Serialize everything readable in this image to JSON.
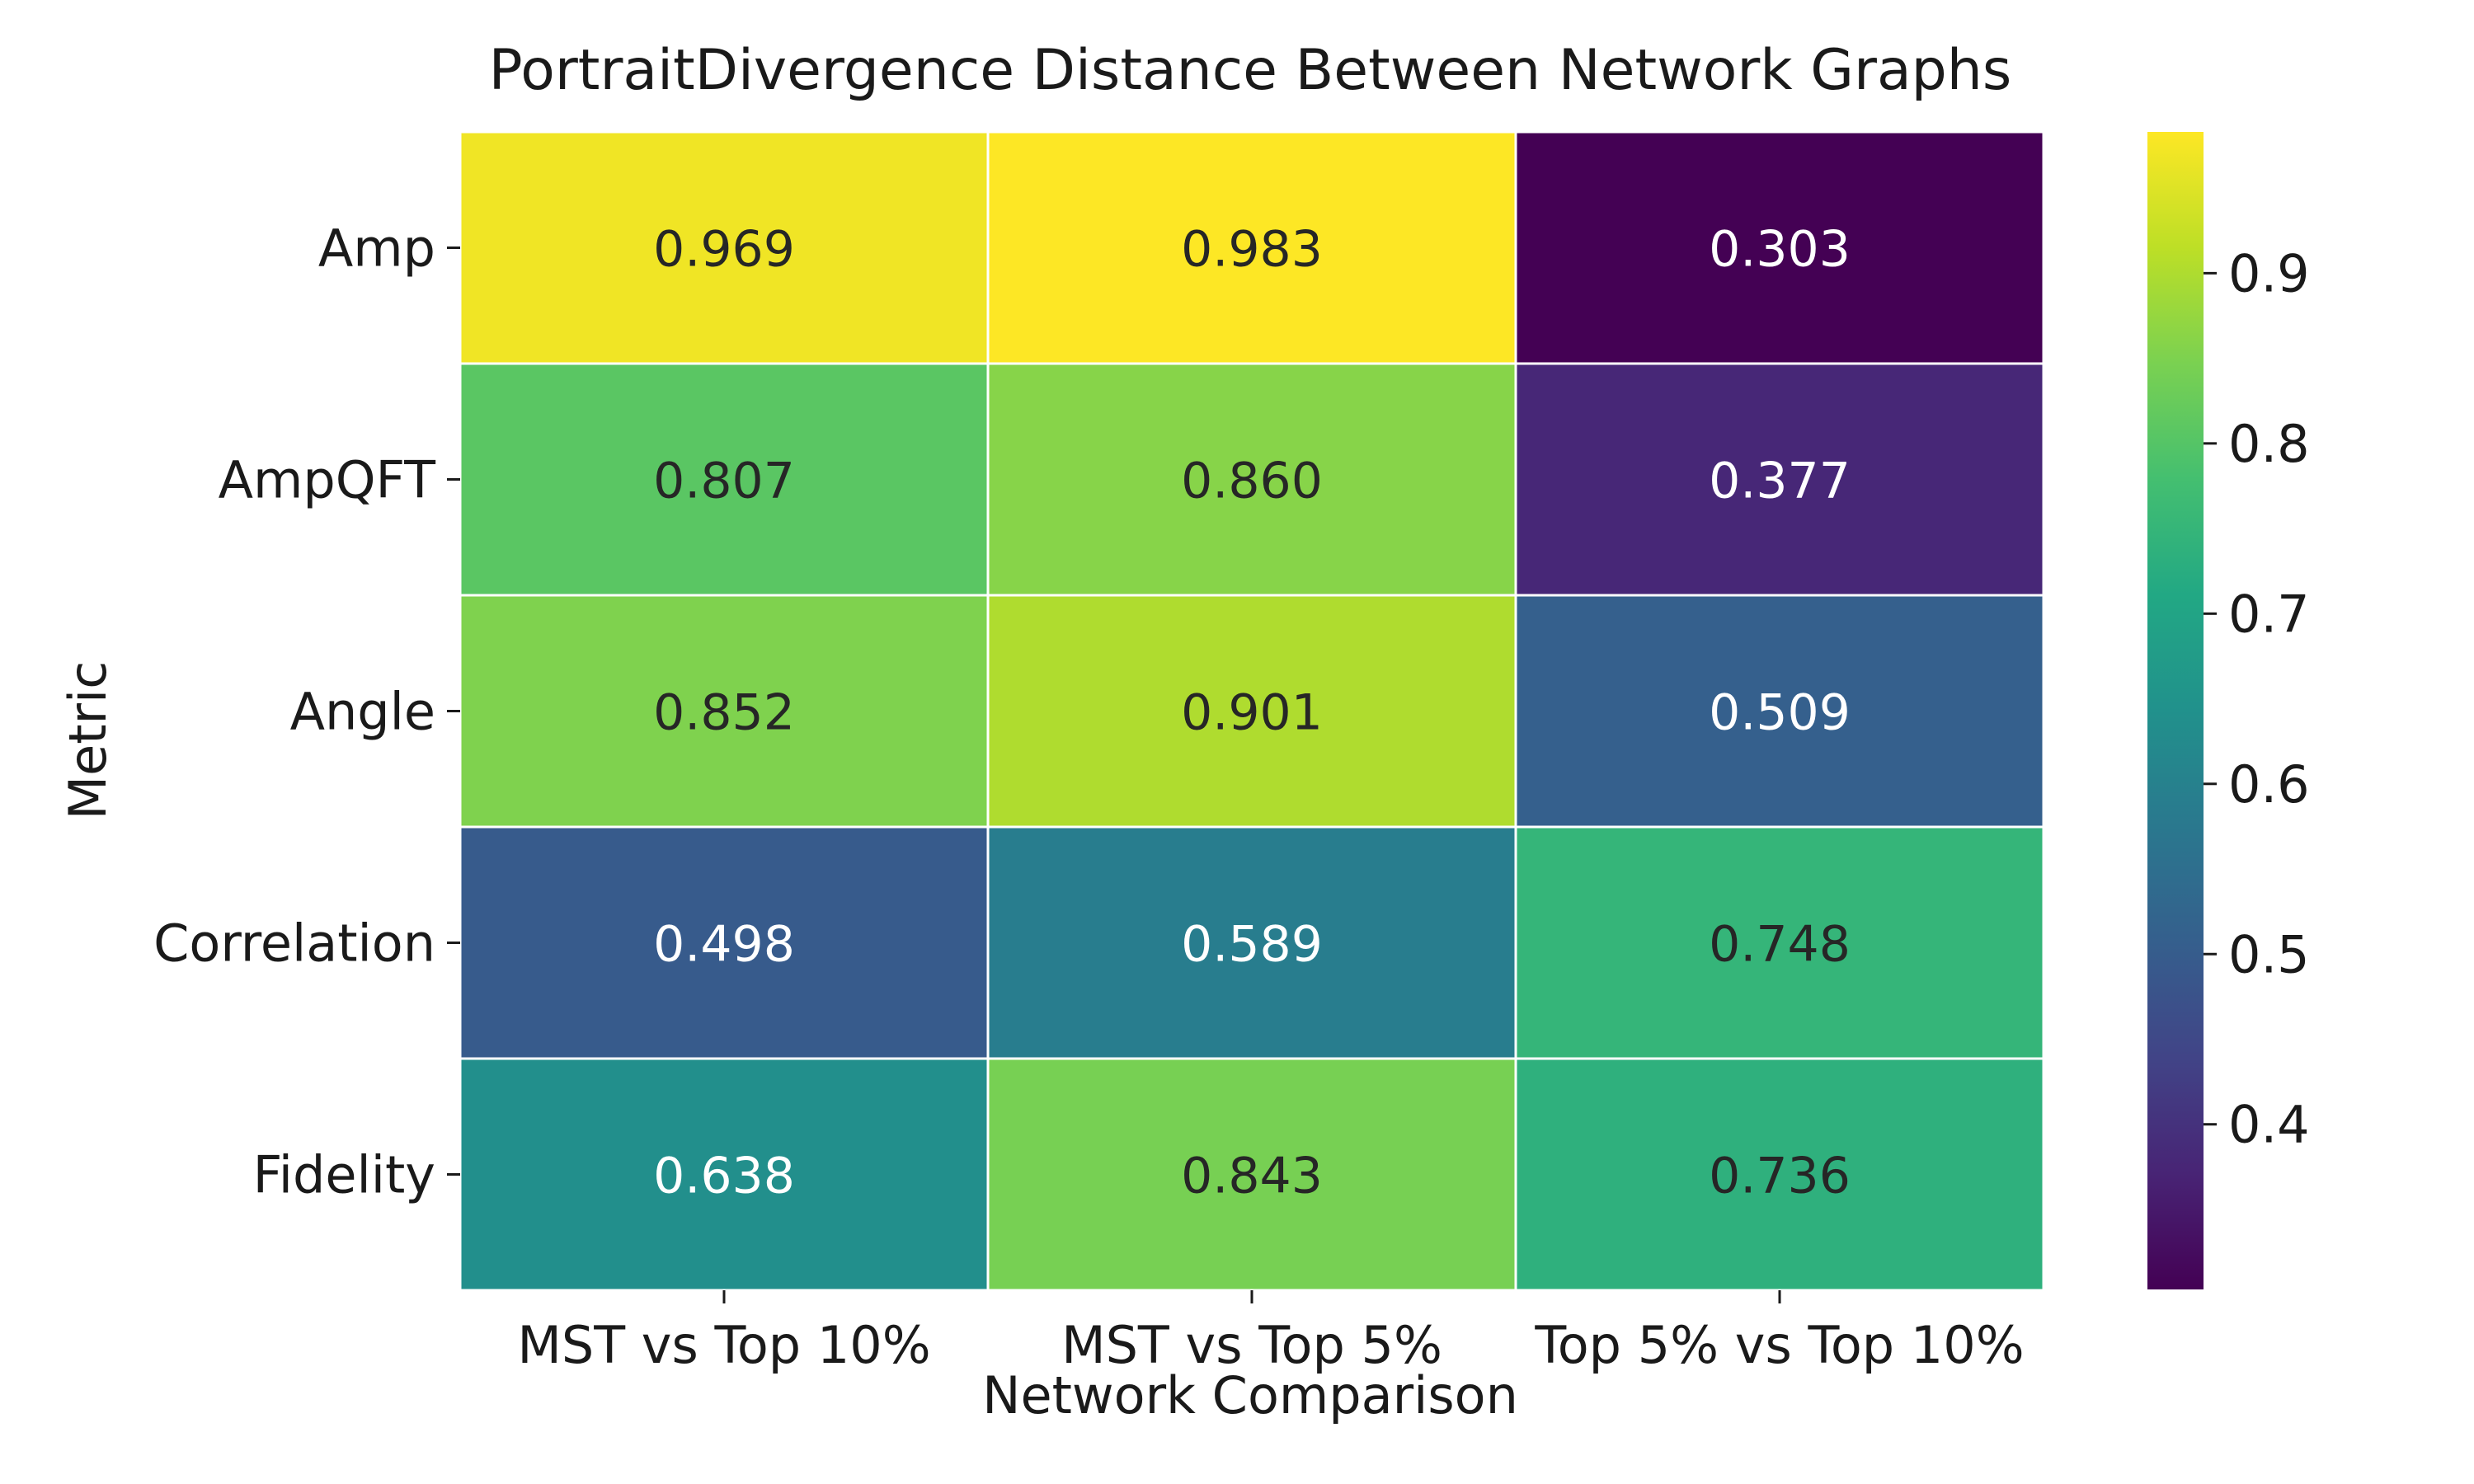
{
  "chart_data": {
    "type": "heatmap",
    "title": "PortraitDivergence Distance Between Network Graphs",
    "xlabel": "Network Comparison",
    "ylabel": "Metric",
    "x_categories": [
      "MST vs Top 10%",
      "MST vs Top 5%",
      "Top 5% vs Top 10%"
    ],
    "y_categories": [
      "Amp",
      "AmpQFT",
      "Angle",
      "Correlation",
      "Fidelity"
    ],
    "values": [
      [
        0.969,
        0.983,
        0.303
      ],
      [
        0.807,
        0.86,
        0.377
      ],
      [
        0.852,
        0.901,
        0.509
      ],
      [
        0.498,
        0.589,
        0.748
      ],
      [
        0.638,
        0.843,
        0.736
      ]
    ],
    "value_labels": [
      [
        "0.969",
        "0.983",
        "0.303"
      ],
      [
        "0.807",
        "0.860",
        "0.377"
      ],
      [
        "0.852",
        "0.901",
        "0.509"
      ],
      [
        "0.498",
        "0.589",
        "0.748"
      ],
      [
        "0.638",
        "0.843",
        "0.736"
      ]
    ],
    "colormap": "viridis",
    "color_range": [
      0.303,
      0.983
    ],
    "colorbar_ticks": [
      "0.4",
      "0.5",
      "0.6",
      "0.7",
      "0.8",
      "0.9"
    ],
    "colorbar_tick_values": [
      0.4,
      0.5,
      0.6,
      0.7,
      0.8,
      0.9
    ],
    "cell_border_color": "#ffffff",
    "grid": false,
    "legend": "colorbar-right"
  }
}
